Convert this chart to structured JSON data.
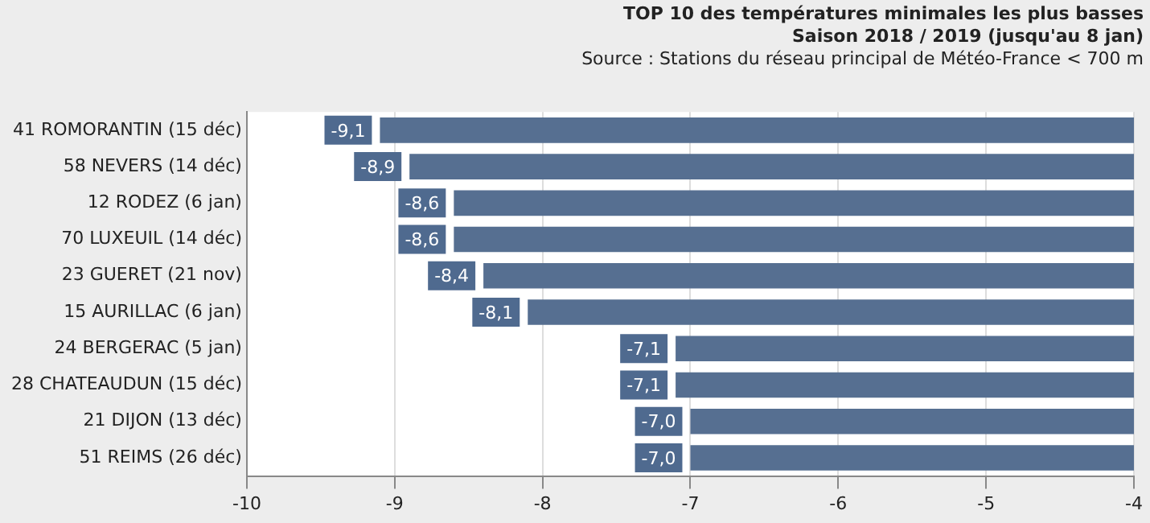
{
  "chart_data": {
    "type": "bar",
    "orientation": "horizontal",
    "title": "TOP 10 des températures minimales les plus basses",
    "subtitle": "Saison 2018 / 2019 (jusqu'au 8 jan)",
    "annotations": [
      "Source : Stations du réseau principal de Météo-France < 700 m"
    ],
    "categories": [
      "41 ROMORANTIN (15 déc)",
      "58 NEVERS (14 déc)",
      "12 RODEZ (6 jan)",
      "70 LUXEUIL (14 déc)",
      "23 GUERET (21 nov)",
      "15 AURILLAC (6 jan)",
      "24 BERGERAC (5 jan)",
      "28 CHATEAUDUN (15 déc)",
      "21 DIJON (13 déc)",
      "51 REIMS (26 déc)"
    ],
    "values": [
      -9.1,
      -8.9,
      -8.6,
      -8.6,
      -8.4,
      -8.1,
      -7.1,
      -7.1,
      -7.0,
      -7.0
    ],
    "value_labels": [
      "-9,1",
      "-8,9",
      "-8,6",
      "-8,6",
      "-8,4",
      "-8,1",
      "-7,1",
      "-7,1",
      "-7,0",
      "-7,0"
    ],
    "color": "#566f91",
    "xlim": [
      -10,
      -4
    ],
    "xticks": [
      -10,
      -9,
      -8,
      -7,
      -6,
      -5,
      -4
    ],
    "grid": "x",
    "legend": false
  }
}
